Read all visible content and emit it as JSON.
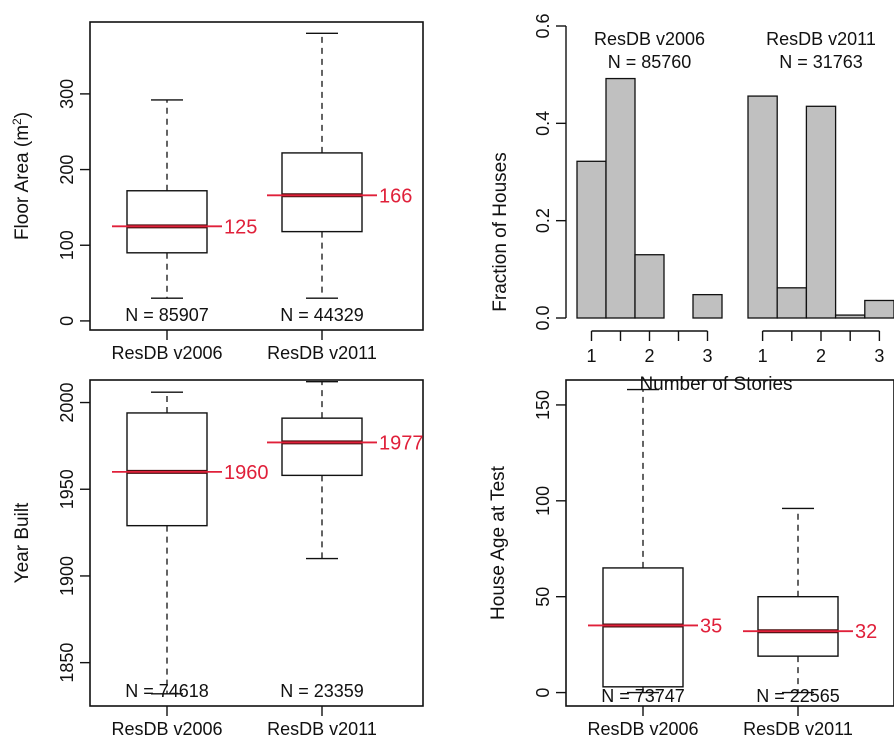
{
  "colors": {
    "median_line": "#e0203a",
    "median_band": "#4a1010",
    "bar_fill": "#c0c0c0",
    "axis": "#111111"
  },
  "chart_data": [
    {
      "type": "boxplot",
      "ylabel": "Floor Area (m",
      "ylabel_sup": "2",
      "ylabel_close": ")",
      "categories": [
        "ResDB v2006",
        "ResDB v2011"
      ],
      "ylim": [
        -12,
        395
      ],
      "yticks": [
        0,
        100,
        200,
        300
      ],
      "ytick_labels": [
        "0",
        "100",
        "200",
        "300"
      ],
      "boxes": [
        {
          "label": "ResDB v2006",
          "whislo": 30,
          "q1": 90,
          "med": 125,
          "q3": 172,
          "whishi": 292,
          "n_label": "N = 85907",
          "median_label": "125"
        },
        {
          "label": "ResDB v2011",
          "whislo": 30,
          "q1": 118,
          "med": 166,
          "q3": 222,
          "whishi": 380,
          "n_label": "N = 44329",
          "median_label": "166"
        }
      ]
    },
    {
      "type": "bar",
      "ylabel": "Fraction of Houses",
      "xlabel": "Number of Stories",
      "ylim": [
        0,
        0.6
      ],
      "yticks": [
        0,
        0.2,
        0.4,
        0.6
      ],
      "ytick_labels": [
        "0.0",
        "0.2",
        "0.4",
        "0.6"
      ],
      "groups": [
        {
          "title": "ResDB v2006",
          "n_label": "N = 85760",
          "x_tick_values": [
            1,
            1.5,
            2,
            2.5,
            3
          ],
          "x_tick_labels": [
            "1",
            "",
            "2",
            "",
            "3"
          ],
          "bins": [
            0.75,
            1.25,
            1.75,
            2.25,
            2.75,
            3.25
          ],
          "values": [
            0.322,
            0.492,
            0.13,
            0.0,
            0.048
          ]
        },
        {
          "title": "ResDB v2011",
          "n_label": "N = 31763",
          "x_tick_values": [
            1,
            1.5,
            2,
            2.5,
            3
          ],
          "x_tick_labels": [
            "1",
            "",
            "2",
            "",
            "3"
          ],
          "bins": [
            0.75,
            1.25,
            1.75,
            2.25,
            2.75,
            3.25
          ],
          "values": [
            0.456,
            0.062,
            0.435,
            0.006,
            0.036
          ]
        }
      ]
    },
    {
      "type": "boxplot",
      "ylabel": "Year Built",
      "categories": [
        "ResDB v2006",
        "ResDB v2011"
      ],
      "ylim": [
        1825,
        2013
      ],
      "yticks": [
        1850,
        1900,
        1950,
        2000
      ],
      "ytick_labels": [
        "1850",
        "1900",
        "1950",
        "2000"
      ],
      "boxes": [
        {
          "label": "ResDB v2006",
          "whislo": 1832,
          "q1": 1929,
          "med": 1960,
          "q3": 1994,
          "whishi": 2006,
          "n_label": "N = 74618",
          "median_label": "1960"
        },
        {
          "label": "ResDB v2011",
          "whislo": 1910,
          "q1": 1958,
          "med": 1977,
          "q3": 1991,
          "whishi": 2012,
          "n_label": "N = 23359",
          "median_label": "1977"
        }
      ]
    },
    {
      "type": "boxplot",
      "ylabel": "House Age at Test",
      "categories": [
        "ResDB v2006",
        "ResDB v2011"
      ],
      "ylim": [
        -7,
        163
      ],
      "yticks": [
        0,
        50,
        100,
        150
      ],
      "ytick_labels": [
        "0",
        "50",
        "100",
        "150"
      ],
      "boxes": [
        {
          "label": "ResDB v2006",
          "whislo": 0,
          "q1": 3,
          "med": 35,
          "q3": 65,
          "whishi": 158,
          "n_label": "N = 73747",
          "median_label": "35"
        },
        {
          "label": "ResDB v2011",
          "whislo": 0,
          "q1": 19,
          "med": 32,
          "q3": 50,
          "whishi": 96,
          "n_label": "N = 22565",
          "median_label": "32"
        }
      ]
    }
  ]
}
